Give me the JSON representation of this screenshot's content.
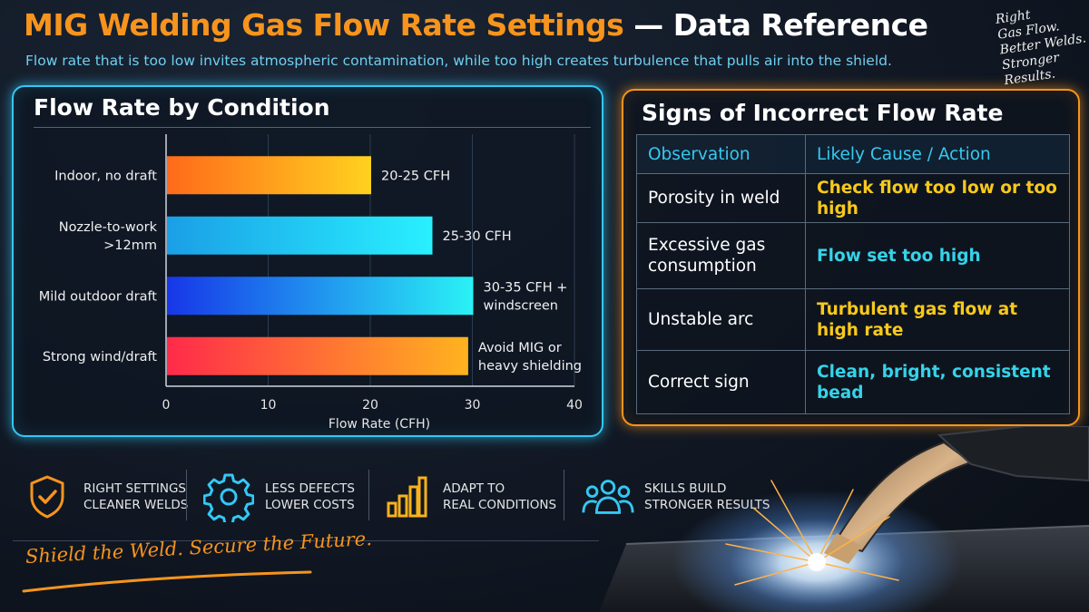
{
  "header": {
    "title_accent": "MIG Welding Gas Flow Rate Settings",
    "title_rest": " — Data Reference",
    "subtitle": "Flow rate that is too low invites atmospheric contamination, while too high creates turbulence that pulls air into the shield."
  },
  "corner_tagline": [
    "Right",
    "Gas Flow.",
    "Better Welds.",
    "Stronger",
    "Results."
  ],
  "chart_panel": {
    "title": "Flow Rate by Condition"
  },
  "chart_data": {
    "type": "bar",
    "orientation": "horizontal",
    "categories": [
      [
        "Indoor, no draft"
      ],
      [
        "Nozzle-to-work",
        ">12mm"
      ],
      [
        "Mild outdoor draft"
      ],
      [
        "Strong wind/draft"
      ]
    ],
    "values": [
      20,
      26,
      30,
      29.5
    ],
    "data_labels": [
      [
        "20-25 CFH"
      ],
      [
        "25-30 CFH"
      ],
      [
        "30-35 CFH +",
        "windscreen"
      ],
      [
        "Avoid MIG or",
        "heavy shielding"
      ]
    ],
    "xlabel": "Flow Rate (CFH)",
    "ylabel": "",
    "xlim": [
      0,
      40
    ],
    "xticks": [
      0,
      10,
      20,
      30,
      40
    ],
    "grid": true,
    "colors": [
      [
        "#ff6a1a",
        "#ffd21f"
      ],
      [
        "#1a9fe6",
        "#29f0ff"
      ],
      [
        "#1736e8",
        "#2af2f5"
      ],
      [
        "#ff2a4a",
        "#ffb31f"
      ]
    ]
  },
  "table_panel": {
    "title": "Signs of Incorrect Flow Rate",
    "headers": [
      "Observation",
      "Likely Cause / Action"
    ],
    "rows": [
      {
        "observation": "Porosity in weld",
        "cause": "Check flow too low or too high",
        "color": "#f8c91b"
      },
      {
        "observation": "Excessive gas consumption",
        "cause": "Flow set too high",
        "color": "#35d3ea"
      },
      {
        "observation": "Unstable arc",
        "cause": "Turbulent gas flow at high rate",
        "color": "#f8c91b"
      },
      {
        "observation": "Correct sign",
        "cause": "Clean, bright, consistent bead",
        "color": "#35d3ea"
      }
    ]
  },
  "benefits": [
    {
      "icon": "shield-check-icon",
      "line1": "RIGHT SETTINGS",
      "line2": "CLEANER WELDS"
    },
    {
      "icon": "gear-icon",
      "line1": "LESS DEFECTS",
      "line2": "LOWER COSTS"
    },
    {
      "icon": "bar-chart-icon",
      "line1": "ADAPT TO",
      "line2": "REAL CONDITIONS"
    },
    {
      "icon": "team-icon",
      "line1": "SKILLS BUILD",
      "line2": "STRONGER RESULTS"
    }
  ],
  "slogan": "Shield the Weld. Secure the Future.",
  "colors": {
    "orange": "#f7941d",
    "cyan": "#33c8f5",
    "yellow": "#f8c91b"
  }
}
